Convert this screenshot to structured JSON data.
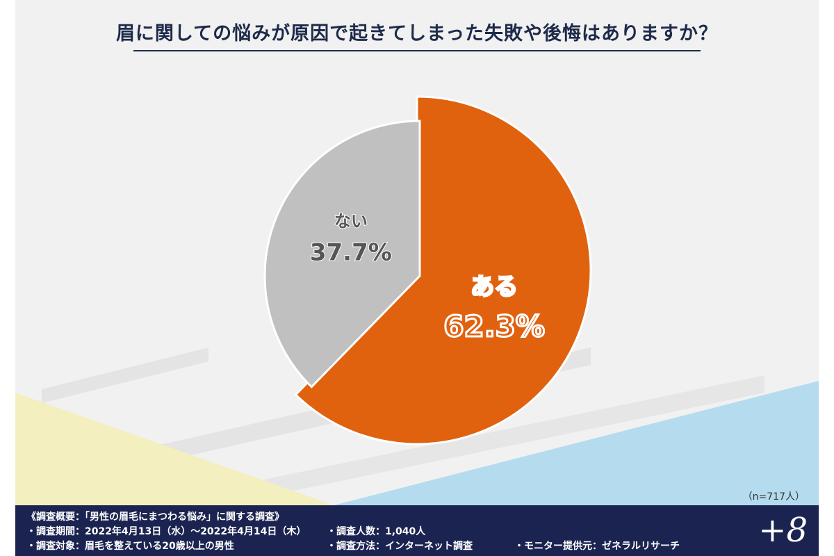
{
  "title": "眉に関しての悩みが原因で起きてしまった失敗や後悔はありますか？",
  "sample_size": "（n=717人）",
  "colors": {
    "primary": "#e0620f",
    "secondary": "#c0c0c0",
    "footer_bg": "#1b2450",
    "title_text": "#1d2a4a"
  },
  "chart_data": {
    "type": "pie",
    "title": "眉に関しての悩みが原因で起きてしまった失敗や後悔はありますか？",
    "slices": [
      {
        "label": "ある",
        "value": 62.3,
        "value_label": "62.3%",
        "color": "#e0620f",
        "exploded": true
      },
      {
        "label": "ない",
        "value": 37.7,
        "value_label": "37.7%",
        "color": "#c0c0c0",
        "exploded": false
      }
    ]
  },
  "footer": {
    "overview": "《調査概要：「男性の眉毛にまつわる悩み」に関する調査》",
    "period": "・調査期間：2022年4月13日（水）～2022年4月14日（木）",
    "target": "・調査対象：眉毛を整えている20歳以上の男性",
    "count": "・調査人数：1,040人",
    "method": "・調査方法：インターネット調査",
    "provider": "・モニター提供元：ゼネラルリサーチ",
    "brand": "+8"
  }
}
